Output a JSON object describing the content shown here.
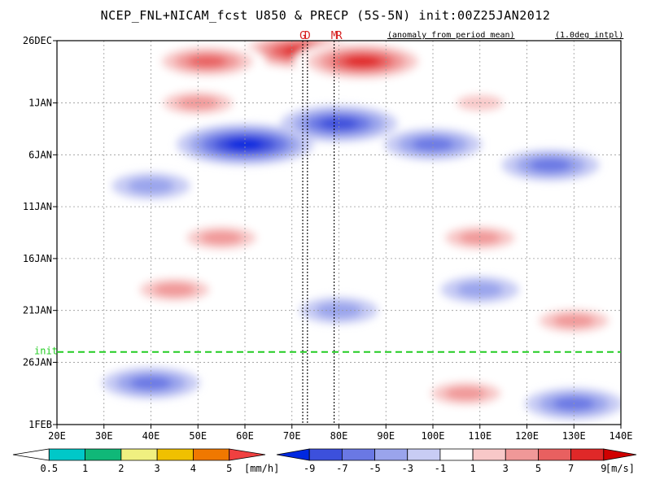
{
  "chart_data": {
    "type": "heatmap",
    "title": "NCEP_FNL+NICAM_fcst U850 & PRECP (5S-5N) init:00Z25JAN2012",
    "annotations": [
      "(anomaly from period mean)",
      "(1.0deg intpl)"
    ],
    "x_ticks": [
      "20E",
      "30E",
      "40E",
      "50E",
      "60E",
      "70E",
      "80E",
      "90E",
      "100E",
      "110E",
      "120E",
      "130E",
      "140E"
    ],
    "xlim": [
      20,
      140
    ],
    "y_ticks": [
      {
        "label": "26DEC",
        "day": 0
      },
      {
        "label": "1JAN",
        "day": 6
      },
      {
        "label": "6JAN",
        "day": 11
      },
      {
        "label": "11JAN",
        "day": 16
      },
      {
        "label": "16JAN",
        "day": 21
      },
      {
        "label": "21JAN",
        "day": 26
      },
      {
        "label": "26JAN",
        "day": 31
      },
      {
        "label": "1FEB",
        "day": 37
      }
    ],
    "ylim_days": [
      0,
      37
    ],
    "markers": [
      {
        "label": "G",
        "lon": 72.3
      },
      {
        "label": "D",
        "lon": 73.3
      },
      {
        "label": "M",
        "lon": 79.5
      },
      {
        "label": "R",
        "lon": 79.5
      }
    ],
    "init_line": {
      "label": "init",
      "day": 30
    },
    "u850_anomaly_pattern": [
      {
        "day": 1,
        "lon": 72,
        "value": 9
      },
      {
        "day": 2,
        "lon": 85,
        "value": 9
      },
      {
        "day": 2,
        "lon": 52,
        "value": 7
      },
      {
        "day": 6,
        "lon": 50,
        "value": 5
      },
      {
        "day": 6,
        "lon": 110,
        "value": 3
      },
      {
        "day": 8,
        "lon": 80,
        "value": -7
      },
      {
        "day": 10,
        "lon": 60,
        "value": -9
      },
      {
        "day": 10,
        "lon": 100,
        "value": -5
      },
      {
        "day": 12,
        "lon": 125,
        "value": -5
      },
      {
        "day": 14,
        "lon": 40,
        "value": -3
      },
      {
        "day": 19,
        "lon": 55,
        "value": 5
      },
      {
        "day": 19,
        "lon": 110,
        "value": 5
      },
      {
        "day": 24,
        "lon": 45,
        "value": 5
      },
      {
        "day": 24,
        "lon": 110,
        "value": -3
      },
      {
        "day": 26,
        "lon": 80,
        "value": -3
      },
      {
        "day": 27,
        "lon": 130,
        "value": 5
      },
      {
        "day": 33,
        "lon": 40,
        "value": -5
      },
      {
        "day": 34,
        "lon": 107,
        "value": 5
      },
      {
        "day": 35,
        "lon": 130,
        "value": -5
      }
    ],
    "u850_colorbar": {
      "unit": "[m/s]",
      "labels": [
        "-9",
        "-7",
        "-5",
        "-3",
        "-1",
        "1",
        "3",
        "5",
        "7",
        "9"
      ],
      "colors": [
        "#0028e0",
        "#3c50dc",
        "#6a78e4",
        "#9aa4ec",
        "#c8ccf4",
        "#ffffff",
        "#f8c8c8",
        "#f09898",
        "#e86060",
        "#e02828",
        "#d00000"
      ]
    },
    "precip_colorbar": {
      "unit": "[mm/h]",
      "labels": [
        "0.5",
        "1",
        "2",
        "3",
        "4",
        "5"
      ],
      "colors": [
        "#ffffff",
        "#00c8c8",
        "#10b878",
        "#f0f080",
        "#f0c000",
        "#f07800",
        "#f04040"
      ]
    }
  }
}
